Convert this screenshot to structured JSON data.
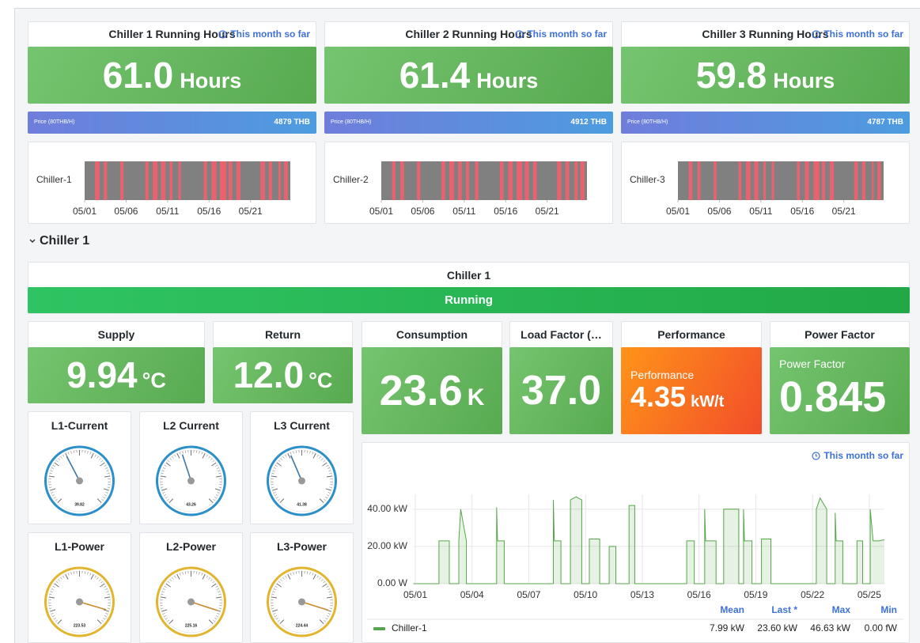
{
  "running_hours": [
    {
      "title": "Chiller 1 Running Hours",
      "note": "This month so far",
      "value": "61.0",
      "unit": "Hours",
      "price_label": "Price (80THB/H)",
      "price": "4879 THB",
      "timeline": {
        "label": "Chiller-1",
        "xlim": [
          1,
          25.8
        ],
        "xticks": [
          {
            "value": 1,
            "label": "05/01"
          },
          {
            "value": 6,
            "label": "05/06"
          },
          {
            "value": 11,
            "label": "05/11"
          },
          {
            "value": 16,
            "label": "05/16"
          },
          {
            "value": 21,
            "label": "05/21"
          }
        ],
        "on": [
          [
            2.25,
            2.8
          ],
          [
            3.3,
            3.7
          ],
          [
            5.3,
            5.7
          ],
          [
            8.3,
            8.7
          ],
          [
            9.2,
            9.8
          ],
          [
            10.2,
            10.75
          ],
          [
            11.25,
            11.6
          ],
          [
            12.3,
            12.6
          ],
          [
            15.35,
            15.75
          ],
          [
            16.3,
            16.9
          ],
          [
            17.3,
            18.1
          ],
          [
            18.35,
            18.8
          ],
          [
            19.3,
            19.8
          ],
          [
            22.2,
            22.75
          ],
          [
            23.2,
            23.6
          ],
          [
            24.35,
            24.65
          ],
          [
            25.05,
            25.5
          ]
        ]
      }
    },
    {
      "title": "Chiller 2 Running Hours",
      "note": "This month so far",
      "value": "61.4",
      "unit": "Hours",
      "price_label": "Price (80THB/H)",
      "price": "4912 THB",
      "timeline": {
        "label": "Chiller-2",
        "xlim": [
          1,
          25.8
        ],
        "xticks": [
          {
            "value": 1,
            "label": "05/01"
          },
          {
            "value": 6,
            "label": "05/06"
          },
          {
            "value": 11,
            "label": "05/11"
          },
          {
            "value": 16,
            "label": "05/16"
          },
          {
            "value": 21,
            "label": "05/21"
          }
        ],
        "on": [
          [
            2.3,
            2.7
          ],
          [
            3.3,
            3.75
          ],
          [
            5.3,
            5.7
          ],
          [
            8.25,
            8.7
          ],
          [
            9.2,
            9.8
          ],
          [
            10.25,
            10.7
          ],
          [
            11.2,
            11.6
          ],
          [
            12.3,
            12.7
          ],
          [
            15.3,
            15.75
          ],
          [
            16.3,
            16.85
          ],
          [
            17.3,
            18.0
          ],
          [
            18.3,
            18.8
          ],
          [
            19.3,
            19.75
          ],
          [
            22.2,
            22.7
          ],
          [
            23.2,
            23.65
          ],
          [
            24.3,
            24.7
          ],
          [
            25.0,
            25.5
          ]
        ]
      }
    },
    {
      "title": "Chiller 3 Running Hours",
      "note": "This month so far",
      "value": "59.8",
      "unit": "Hours",
      "price_label": "Price (80THB/H)",
      "price": "4787 THB",
      "timeline": {
        "label": "Chiller-3",
        "xlim": [
          1,
          25.8
        ],
        "xticks": [
          {
            "value": 1,
            "label": "05/01"
          },
          {
            "value": 6,
            "label": "05/06"
          },
          {
            "value": 11,
            "label": "05/11"
          },
          {
            "value": 16,
            "label": "05/16"
          },
          {
            "value": 21,
            "label": "05/21"
          }
        ],
        "on": [
          [
            2.3,
            2.75
          ],
          [
            3.35,
            3.7
          ],
          [
            5.3,
            5.65
          ],
          [
            8.3,
            8.65
          ],
          [
            9.2,
            9.75
          ],
          [
            10.2,
            10.7
          ],
          [
            11.3,
            11.6
          ],
          [
            12.3,
            12.6
          ],
          [
            15.35,
            15.7
          ],
          [
            16.3,
            16.8
          ],
          [
            17.35,
            18.05
          ],
          [
            18.35,
            18.75
          ],
          [
            19.3,
            19.8
          ],
          [
            22.25,
            22.7
          ],
          [
            23.2,
            23.6
          ],
          [
            24.35,
            24.6
          ],
          [
            25.05,
            25.45
          ]
        ]
      }
    }
  ],
  "section": {
    "title": "Chiller 1"
  },
  "status": {
    "title": "Chiller 1",
    "state": "Running"
  },
  "stats": [
    {
      "title": "Supply",
      "value": "9.94",
      "unit": "°C"
    },
    {
      "title": "Return",
      "value": "12.0",
      "unit": "°C"
    },
    {
      "title": "Consumption",
      "value": "23.6",
      "unit": "K"
    },
    {
      "title": "Load Factor (…",
      "value": "37.0"
    },
    {
      "title": "Performance",
      "label": "Performance",
      "value": "4.35",
      "unit": "kW/t"
    },
    {
      "title": "Power Factor",
      "label": "Power Factor",
      "value": "0.845"
    }
  ],
  "gauges": [
    {
      "title": "L1-Current",
      "value": 39.82,
      "min": 0,
      "max": 100,
      "color": "#2b8fc9"
    },
    {
      "title": "L2 Current",
      "value": 43.26,
      "min": 0,
      "max": 100,
      "color": "#2b8fc9"
    },
    {
      "title": "L3 Current",
      "value": 41.38,
      "min": 0,
      "max": 100,
      "color": "#2b8fc9"
    },
    {
      "title": "L1-Power",
      "value": 223.53,
      "min": 0,
      "max": 250,
      "color": "#e2b52f"
    },
    {
      "title": "L2-Power",
      "value": 225.16,
      "min": 0,
      "max": 250,
      "color": "#e2b52f"
    },
    {
      "title": "L3-Power",
      "value": 224.44,
      "min": 0,
      "max": 250,
      "color": "#e2b52f"
    }
  ],
  "power_chart": {
    "type": "line",
    "note": "This month so far",
    "xlim": [
      0.875,
      25.8
    ],
    "xticks": [
      {
        "value": 1,
        "label": "05/01"
      },
      {
        "value": 4,
        "label": "05/04"
      },
      {
        "value": 7,
        "label": "05/07"
      },
      {
        "value": 10,
        "label": "05/10"
      },
      {
        "value": 13,
        "label": "05/13"
      },
      {
        "value": 16,
        "label": "05/16"
      },
      {
        "value": 19,
        "label": "05/19"
      },
      {
        "value": 22,
        "label": "05/22"
      },
      {
        "value": 25,
        "label": "05/25"
      }
    ],
    "ylim": [
      0,
      48
    ],
    "yticks": [
      {
        "value": 0,
        "label": "0.00 W"
      },
      {
        "value": 20,
        "label": "20.00 kW"
      },
      {
        "value": 40,
        "label": "40.00 kW"
      }
    ],
    "grid": true,
    "legend_columns": [
      "Mean",
      "Last *",
      "Max",
      "Min"
    ],
    "series": [
      {
        "name": "Chiller-1",
        "color": "#56a64b",
        "stats": [
          "7.99 kW",
          "23.60 kW",
          "46.63 kW",
          "0.00 fW"
        ],
        "x": [
          0.9,
          2.25,
          2.25,
          2.8,
          2.8,
          3.3,
          3.3,
          3.4,
          3.7,
          3.7,
          5.3,
          5.3,
          5.35,
          5.7,
          5.7,
          8.3,
          8.3,
          8.35,
          8.7,
          8.7,
          9.2,
          9.2,
          9.5,
          9.8,
          9.8,
          10.2,
          10.2,
          10.75,
          10.75,
          11.25,
          11.25,
          11.6,
          11.6,
          12.3,
          12.3,
          12.6,
          12.6,
          15.35,
          15.35,
          15.75,
          15.75,
          16.3,
          16.3,
          16.35,
          16.9,
          16.9,
          17.3,
          17.3,
          17.7,
          18.1,
          18.1,
          18.35,
          18.35,
          18.4,
          18.8,
          18.8,
          19.3,
          19.3,
          19.8,
          19.8,
          22.2,
          22.2,
          22.4,
          22.75,
          22.75,
          23.2,
          23.2,
          23.25,
          23.6,
          23.6,
          24.35,
          24.35,
          24.65,
          24.65,
          25.05,
          25.05,
          25.2,
          25.5,
          25.8
        ],
        "values": [
          0,
          0,
          23,
          23,
          0,
          0,
          23,
          40,
          23,
          0,
          0,
          41,
          23,
          23,
          0,
          0,
          45,
          23,
          23,
          0,
          0,
          45,
          46.63,
          45,
          0,
          0,
          24,
          24,
          0,
          0,
          20,
          20,
          0,
          0,
          42,
          42,
          0,
          0,
          23,
          23,
          0,
          0,
          40,
          23,
          23,
          0,
          0,
          40,
          40,
          40,
          0,
          0,
          40,
          23,
          23,
          0,
          0,
          24,
          24,
          0,
          0,
          40,
          46,
          40,
          0,
          0,
          38,
          23,
          23,
          0,
          0,
          23,
          23,
          0,
          0,
          40,
          23,
          23,
          23.6
        ]
      }
    ]
  }
}
